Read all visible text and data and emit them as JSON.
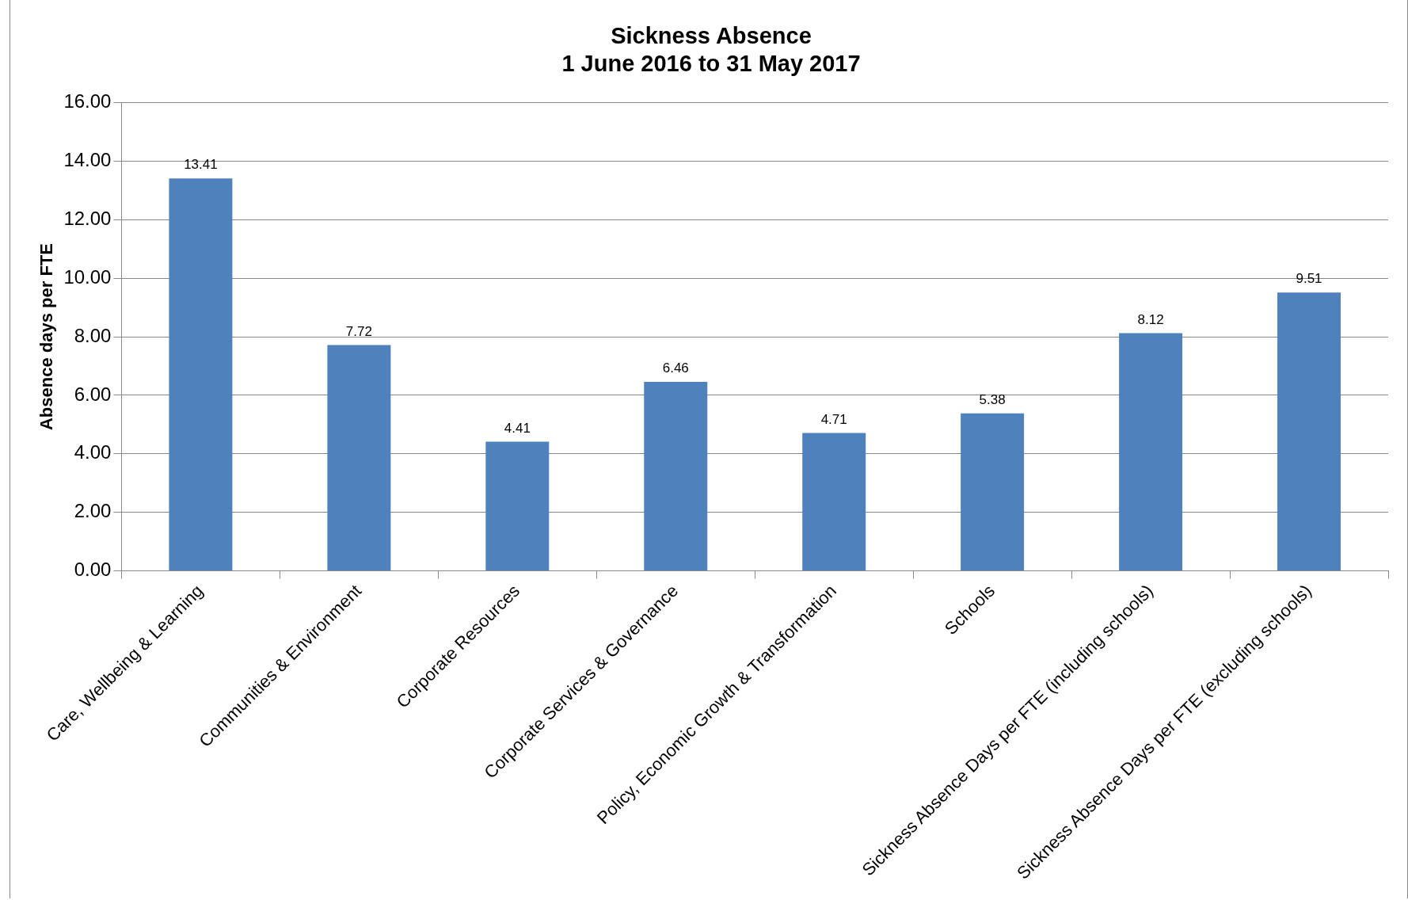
{
  "chart_data": {
    "type": "bar",
    "title": [
      "Sickness Absence",
      "1 June 2016 to 31 May 2017"
    ],
    "ylabel": "Absence days per FTE",
    "categories": [
      "Care, Wellbeing & Learning",
      "Communities & Environment",
      "Corporate Resources",
      "Corporate Services & Governance",
      "Policy, Economic Growth & Transformation",
      "Schools",
      "Sickness Absence Days per FTE (including schools)",
      "Sickness Absence Days per FTE (excluding schools)"
    ],
    "values": [
      13.41,
      7.72,
      4.41,
      6.46,
      4.71,
      5.38,
      8.12,
      9.51
    ],
    "color": "#4f81bd",
    "ylim": [
      0,
      16
    ],
    "yticks": [
      {
        "value": 0,
        "label": "0.00"
      },
      {
        "value": 2,
        "label": "2.00"
      },
      {
        "value": 4,
        "label": "4.00"
      },
      {
        "value": 6,
        "label": "6.00"
      },
      {
        "value": 8,
        "label": "8.00"
      },
      {
        "value": 10,
        "label": "10.00"
      },
      {
        "value": 12,
        "label": "12.00"
      },
      {
        "value": 14,
        "label": "14.00"
      },
      {
        "value": 16,
        "label": "16.00"
      }
    ],
    "grid": "y",
    "legend": false,
    "data_labels": true
  }
}
